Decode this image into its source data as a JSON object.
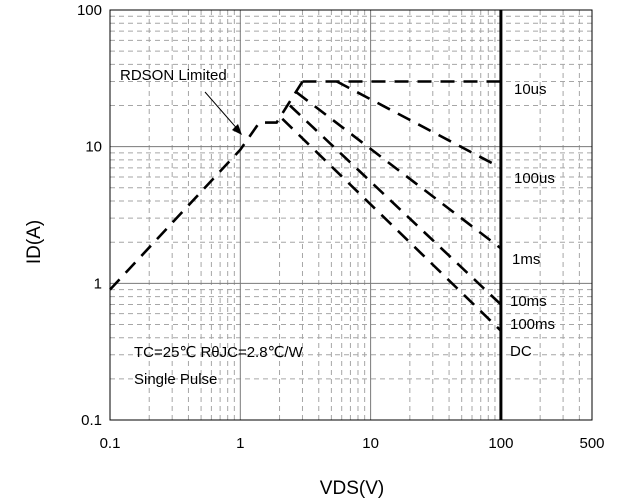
{
  "chart_data": {
    "type": "line",
    "xscale": "log",
    "yscale": "log",
    "xlim": [
      0.1,
      500
    ],
    "ylim": [
      0.1,
      100
    ],
    "xlabel": "VDS(V)",
    "ylabel": "ID(A)",
    "x_ticks": [
      "0.1",
      "1",
      "10",
      "100",
      "500"
    ],
    "y_ticks": [
      "0.1",
      "1",
      "10",
      "100"
    ],
    "grid": true,
    "annotations": {
      "rdson": "RDSON Limited",
      "conditions": "TC=25℃  RθJC=2.8℃/W",
      "pulse": "Single Pulse"
    },
    "series": [
      {
        "name": "RDSON Limited",
        "style": "dashed",
        "x": [
          0.1,
          1.0,
          1.4,
          1.9,
          3.0
        ],
        "y": [
          0.9,
          9.5,
          15.0,
          15.0,
          30.0
        ]
      },
      {
        "name": "10us",
        "style": "dashed",
        "x": [
          3.0,
          100
        ],
        "y": [
          30.0,
          30.0
        ]
      },
      {
        "name": "100us",
        "style": "dashed",
        "x": [
          5.5,
          100
        ],
        "y": [
          30.0,
          7.0
        ]
      },
      {
        "name": "1ms",
        "style": "dashed",
        "x": [
          2.7,
          100
        ],
        "y": [
          25.0,
          1.8
        ]
      },
      {
        "name": "10ms",
        "style": "dashed",
        "x": [
          2.4,
          100
        ],
        "y": [
          20.0,
          0.7
        ]
      },
      {
        "name": "100ms",
        "style": "dashed",
        "x": [
          2.1,
          100
        ],
        "y": [
          16.0,
          0.45
        ]
      },
      {
        "name": "DC",
        "style": "solid",
        "x": [
          100,
          100
        ],
        "y": [
          0.1,
          100
        ]
      }
    ]
  }
}
